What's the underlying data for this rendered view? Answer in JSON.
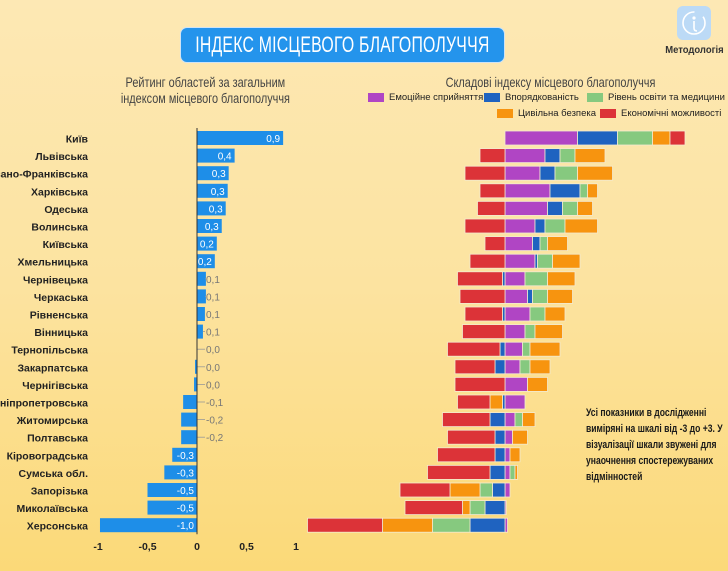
{
  "header": {
    "title": "ІНДЕКС МІСЦЕВОГО БЛАГОПОЛУЧЧЯ",
    "methodology_label": "Методологія",
    "methodology_icon": "info-icon"
  },
  "note": "Усі показники в дослідженні виміряні на шкалі від -3 до +3. У візуалізації шкали звужені для унаочнення спостережуваних відмінностей",
  "chart_data": [
    {
      "type": "bar",
      "orientation": "horizontal",
      "title_line1": "Рейтинг областей за загальним",
      "title_line2": "індексом місцевого благополуччя",
      "categories": [
        "Київ",
        "Львівська",
        "Івано-Франківська",
        "Харківська",
        "Одеська",
        "Волинська",
        "Київська",
        "Хмельницька",
        "Чернівецька",
        "Черкаська",
        "Рівненська",
        "Вінницька",
        "Тернопільська",
        "Закарпатська",
        "Чернігівська",
        "Дніпропетровська",
        "Житомирська",
        "Полтавська",
        "Кіровоградська",
        "Сумська обл.",
        "Запорізька",
        "Миколаївська",
        "Херсонська"
      ],
      "values": [
        0.87,
        0.38,
        0.32,
        0.31,
        0.29,
        0.25,
        0.2,
        0.18,
        0.09,
        0.09,
        0.08,
        0.06,
        0.0,
        -0.02,
        -0.03,
        -0.14,
        -0.16,
        -0.16,
        -0.25,
        -0.33,
        -0.5,
        -0.5,
        -0.98
      ],
      "data_labels": [
        "0,9",
        "0,4",
        "0,3",
        "0,3",
        "0,3",
        "0,3",
        "0,2",
        "0,2",
        "0,1",
        "0,1",
        "0,1",
        "0,1",
        "0,0",
        "0,0",
        "0,0",
        "-0,1",
        "-0,2",
        "-0,2",
        "-0,3",
        "-0,3",
        "-0,5",
        "-0,5",
        "-1,0"
      ],
      "xlim": [
        -1,
        1
      ],
      "xticks": [
        "-1",
        "-0,5",
        "0",
        "0,5",
        "1"
      ],
      "xtick_values": [
        -1,
        -0.5,
        0,
        0.5,
        1
      ],
      "bar_color": "#1e8ee8",
      "grid": false
    },
    {
      "type": "bar",
      "orientation": "horizontal",
      "stacked": true,
      "diverging": true,
      "title": "Складові індексу місцевого благополуччя",
      "legend_position": "top-right",
      "series": [
        {
          "name": "Емоційне сприйняття",
          "color": "#b045c4",
          "values": [
            2.9,
            1.6,
            1.4,
            1.8,
            1.7,
            1.2,
            1.1,
            1.2,
            0.8,
            0.9,
            1.0,
            0.8,
            0.7,
            0.6,
            0.9,
            0.8,
            0.4,
            0.3,
            0.2,
            0.2,
            0.2,
            0.05,
            0.1
          ]
        },
        {
          "name": "Впорядкованість",
          "color": "#1f63c0",
          "values": [
            1.6,
            0.6,
            0.6,
            1.2,
            0.6,
            0.4,
            0.3,
            0.1,
            -0.1,
            0.2,
            -0.1,
            0,
            -0.2,
            -0.4,
            0,
            -0.1,
            -0.6,
            -0.4,
            -0.4,
            -0.6,
            -0.5,
            -0.8,
            -1.4
          ]
        },
        {
          "name": "Рівень освіти та медицини",
          "color": "#86c97f",
          "values": [
            1.4,
            0.6,
            0.9,
            0.3,
            0.6,
            0.8,
            0.3,
            0.6,
            0.9,
            0.6,
            0.6,
            0.4,
            0.3,
            0.4,
            0,
            0,
            0.3,
            0,
            0,
            0.2,
            -0.5,
            -0.6,
            -1.5
          ]
        },
        {
          "name": "Цивільна безпека",
          "color": "#f7940f",
          "values": [
            0.7,
            1.2,
            1.4,
            0.4,
            0.6,
            1.3,
            0.8,
            1.1,
            1.1,
            1.0,
            0.8,
            1.1,
            1.2,
            0.8,
            0.8,
            -0.5,
            0.5,
            0.6,
            0.4,
            0.1,
            -1.2,
            -0.3,
            -2.0
          ]
        },
        {
          "name": "Економічні можливості",
          "color": "#dc3338",
          "values": [
            0.6,
            -1.0,
            -1.6,
            -1.0,
            -1.1,
            -1.6,
            -0.8,
            -1.4,
            -1.8,
            -1.8,
            -1.5,
            -1.7,
            -2.1,
            -1.6,
            -2.0,
            -1.3,
            -1.9,
            -1.9,
            -2.3,
            -2.5,
            -2.0,
            -2.3,
            -3.0
          ]
        }
      ]
    }
  ]
}
